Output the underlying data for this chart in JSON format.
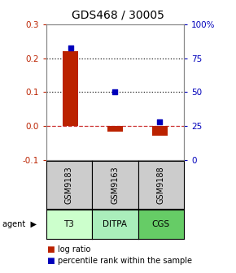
{
  "title": "GDS468 / 30005",
  "samples": [
    "GSM9183",
    "GSM9163",
    "GSM9188"
  ],
  "agents": [
    "T3",
    "DITPA",
    "CGS"
  ],
  "log_ratios": [
    0.222,
    -0.018,
    -0.03
  ],
  "percentile_ranks": [
    83,
    50,
    28
  ],
  "left_ylim": [
    -0.1,
    0.3
  ],
  "right_ylim": [
    0,
    100
  ],
  "left_yticks": [
    -0.1,
    0.0,
    0.1,
    0.2,
    0.3
  ],
  "right_yticks": [
    0,
    25,
    50,
    75,
    100
  ],
  "right_yticklabels": [
    "0",
    "25",
    "50",
    "75",
    "100%"
  ],
  "bar_color": "#bb2200",
  "point_color": "#0000bb",
  "zero_line_color": "#cc3333",
  "dotted_line_color": "#222222",
  "agent_colors": [
    "#ccffcc",
    "#aaeebb",
    "#66cc66"
  ],
  "sample_bg": "#cccccc",
  "title_fontsize": 10,
  "axis_fontsize": 7.5,
  "label_fontsize": 8,
  "legend_fontsize": 7
}
